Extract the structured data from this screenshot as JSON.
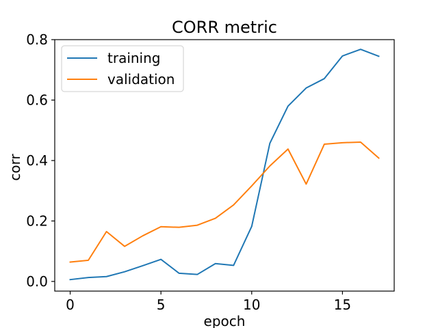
{
  "chart_data": {
    "type": "line",
    "title": "CORR metric",
    "xlabel": "epoch",
    "ylabel": "corr",
    "xlim": [
      -0.85,
      17.85
    ],
    "ylim": [
      -0.032,
      0.8
    ],
    "x_ticks": [
      0,
      5,
      10,
      15
    ],
    "y_ticks": [
      0.0,
      0.2,
      0.4,
      0.6,
      0.8
    ],
    "y_tick_labels": [
      "0.0",
      "0.2",
      "0.4",
      "0.6",
      "0.8"
    ],
    "grid": false,
    "legend_position": "upper-left",
    "x": [
      0,
      1,
      2,
      3,
      4,
      5,
      6,
      7,
      8,
      9,
      10,
      11,
      12,
      13,
      14,
      15,
      16,
      17
    ],
    "series": [
      {
        "name": "training",
        "color": "#1f77b4",
        "values": [
          0.006,
          0.013,
          0.016,
          0.032,
          0.052,
          0.073,
          0.027,
          0.023,
          0.059,
          0.053,
          0.182,
          0.457,
          0.58,
          0.64,
          0.671,
          0.746,
          0.768,
          0.745
        ]
      },
      {
        "name": "validation",
        "color": "#ff7f0e",
        "values": [
          0.064,
          0.07,
          0.165,
          0.116,
          0.151,
          0.181,
          0.179,
          0.186,
          0.209,
          0.253,
          0.316,
          0.382,
          0.438,
          0.322,
          0.454,
          0.459,
          0.461,
          0.408
        ]
      }
    ]
  }
}
